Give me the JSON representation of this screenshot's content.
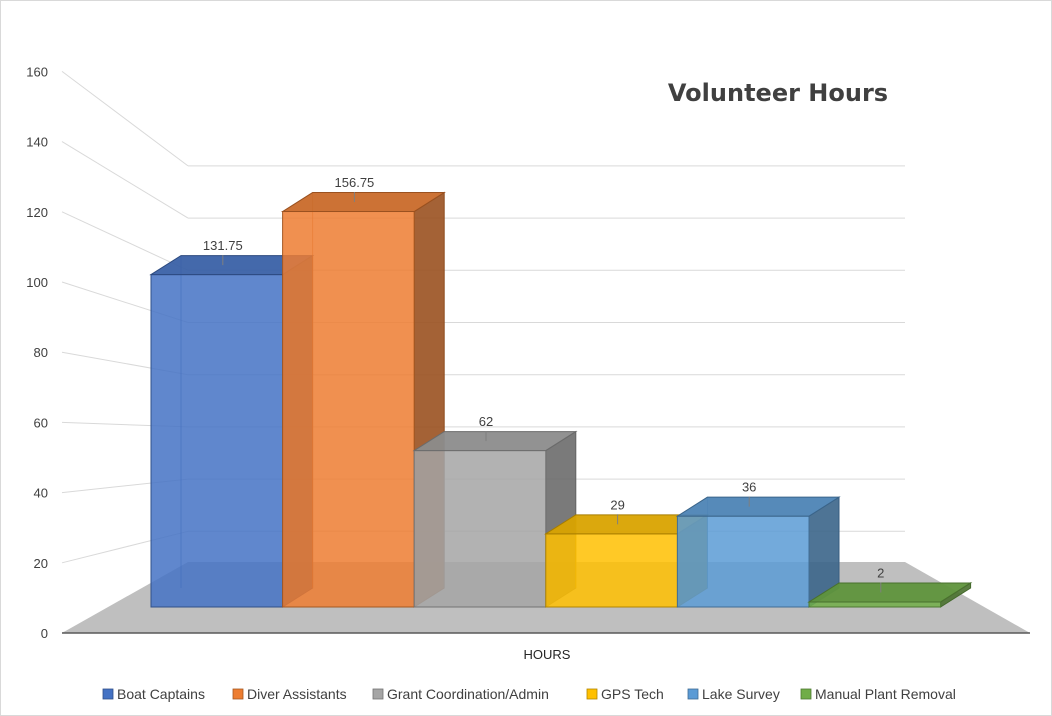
{
  "chart_data": {
    "type": "bar",
    "style": "3d-clustered-column",
    "title": "Volunteer Hours",
    "xlabel": "HOURS",
    "ylabel": "",
    "categories": [
      "HOURS"
    ],
    "series": [
      {
        "name": "Boat Captains",
        "values": [
          131.75
        ],
        "color": "#4472C4"
      },
      {
        "name": "Diver Assistants",
        "values": [
          156.75
        ],
        "color": "#ED7D31"
      },
      {
        "name": "Grant Coordination/Admin",
        "values": [
          62
        ],
        "color": "#A5A5A5"
      },
      {
        "name": "GPS Tech",
        "values": [
          29
        ],
        "color": "#FFC000"
      },
      {
        "name": "Lake Survey",
        "values": [
          36
        ],
        "color": "#5B9BD5"
      },
      {
        "name": "Manual Plant Removal",
        "values": [
          2
        ],
        "color": "#70AD47"
      }
    ],
    "data_labels": [
      "131.75",
      "156.75",
      "62",
      "29",
      "36",
      "2"
    ],
    "ylim": [
      0,
      160
    ],
    "yticks": [
      "0",
      "20",
      "40",
      "60",
      "80",
      "100",
      "120",
      "140",
      "160"
    ],
    "grid": true,
    "legend_position": "bottom"
  }
}
